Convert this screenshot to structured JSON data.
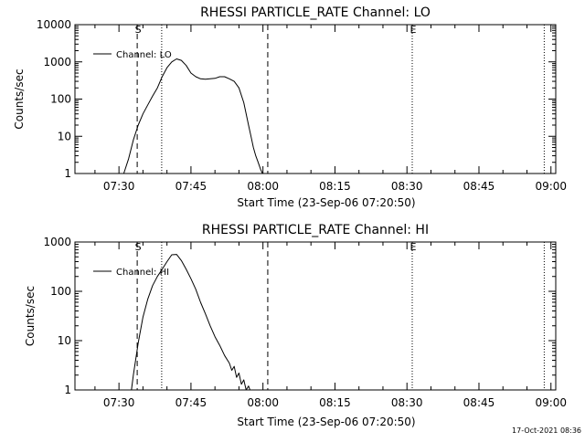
{
  "footer_date": "17-Oct-2021 08:36",
  "chart_data": [
    {
      "type": "line",
      "title": "RHESSI PARTICLE_RATE Channel: LO",
      "xlabel": "Start Time (23-Sep-06 07:20:50)",
      "ylabel": "Counts/sec",
      "yscale": "log",
      "ylim": [
        1,
        10000
      ],
      "yticks": [
        "1",
        "10",
        "100",
        "1000",
        "10000"
      ],
      "xlim_minutes": [
        20.83,
        121.0
      ],
      "xticks": [
        {
          "label": "07:30",
          "minute": 30
        },
        {
          "label": "07:45",
          "minute": 45
        },
        {
          "label": "08:00",
          "minute": 60
        },
        {
          "label": "08:15",
          "minute": 75
        },
        {
          "label": "08:30",
          "minute": 90
        },
        {
          "label": "08:45",
          "minute": 105
        },
        {
          "label": "09:00",
          "minute": 120
        }
      ],
      "legend_entries": [
        "Channel: LO"
      ],
      "legend_position": "top-left",
      "markers": [
        {
          "label": "S",
          "minute": 33.8,
          "style": "dashed"
        },
        {
          "label": "E",
          "minute": 91.1,
          "style": "dotted"
        }
      ],
      "vlines": [
        {
          "minute": 33.8,
          "style": "dashed"
        },
        {
          "minute": 38.9,
          "style": "dotted"
        },
        {
          "minute": 61.0,
          "style": "dashed"
        },
        {
          "minute": 91.1,
          "style": "dotted"
        },
        {
          "minute": 118.6,
          "style": "dotted"
        }
      ],
      "series": [
        {
          "name": "Channel: LO",
          "x": [
            31.0,
            32.0,
            33.0,
            34.0,
            35.0,
            36.0,
            37.0,
            38.0,
            39.0,
            40.0,
            41.0,
            42.0,
            43.0,
            44.0,
            45.0,
            46.0,
            47.0,
            48.0,
            49.0,
            50.0,
            51.0,
            52.0,
            53.0,
            54.0,
            55.0,
            56.0,
            57.0,
            57.5,
            58.0,
            58.5,
            59.0,
            59.5,
            59.9
          ],
          "y": [
            1,
            2.5,
            8,
            20,
            40,
            70,
            120,
            200,
            400,
            700,
            1000,
            1200,
            1100,
            800,
            500,
            400,
            350,
            340,
            350,
            360,
            400,
            400,
            350,
            300,
            200,
            80,
            20,
            10,
            5,
            3,
            2,
            1.3,
            1
          ]
        }
      ]
    },
    {
      "type": "line",
      "title": "RHESSI PARTICLE_RATE Channel: HI",
      "xlabel": "Start Time (23-Sep-06 07:20:50)",
      "ylabel": "Counts/sec",
      "yscale": "log",
      "ylim": [
        1,
        1000
      ],
      "yticks": [
        "1",
        "10",
        "100",
        "1000"
      ],
      "xlim_minutes": [
        20.83,
        121.0
      ],
      "xticks": [
        {
          "label": "07:30",
          "minute": 30
        },
        {
          "label": "07:45",
          "minute": 45
        },
        {
          "label": "08:00",
          "minute": 60
        },
        {
          "label": "08:15",
          "minute": 75
        },
        {
          "label": "08:30",
          "minute": 90
        },
        {
          "label": "08:45",
          "minute": 105
        },
        {
          "label": "09:00",
          "minute": 120
        }
      ],
      "legend_entries": [
        "Channel: HI"
      ],
      "legend_position": "top-left",
      "markers": [
        {
          "label": "S",
          "minute": 33.8,
          "style": "dashed"
        },
        {
          "label": "E",
          "minute": 91.1,
          "style": "dotted"
        }
      ],
      "vlines": [
        {
          "minute": 33.8,
          "style": "dashed"
        },
        {
          "minute": 38.9,
          "style": "dotted"
        },
        {
          "minute": 61.0,
          "style": "dashed"
        },
        {
          "minute": 91.1,
          "style": "dotted"
        },
        {
          "minute": 118.6,
          "style": "dotted"
        }
      ],
      "series": [
        {
          "name": "Channel: HI",
          "x": [
            32.6,
            33.0,
            34.0,
            35.0,
            36.0,
            37.0,
            38.0,
            39.0,
            40.0,
            41.0,
            42.0,
            43.0,
            44.0,
            45.0,
            46.0,
            47.0,
            48.0,
            49.0,
            50.0,
            51.0,
            52.0,
            53.0,
            53.5,
            54.0,
            54.5,
            55.0,
            55.5,
            56.0,
            56.5,
            57.0,
            57.3
          ],
          "y": [
            1,
            2,
            9,
            30,
            70,
            130,
            200,
            280,
            400,
            550,
            560,
            420,
            280,
            180,
            110,
            60,
            35,
            20,
            12,
            8,
            5,
            3.5,
            2.5,
            3,
            1.8,
            2.2,
            1.3,
            1.6,
            1,
            1.2,
            1
          ]
        }
      ]
    }
  ]
}
